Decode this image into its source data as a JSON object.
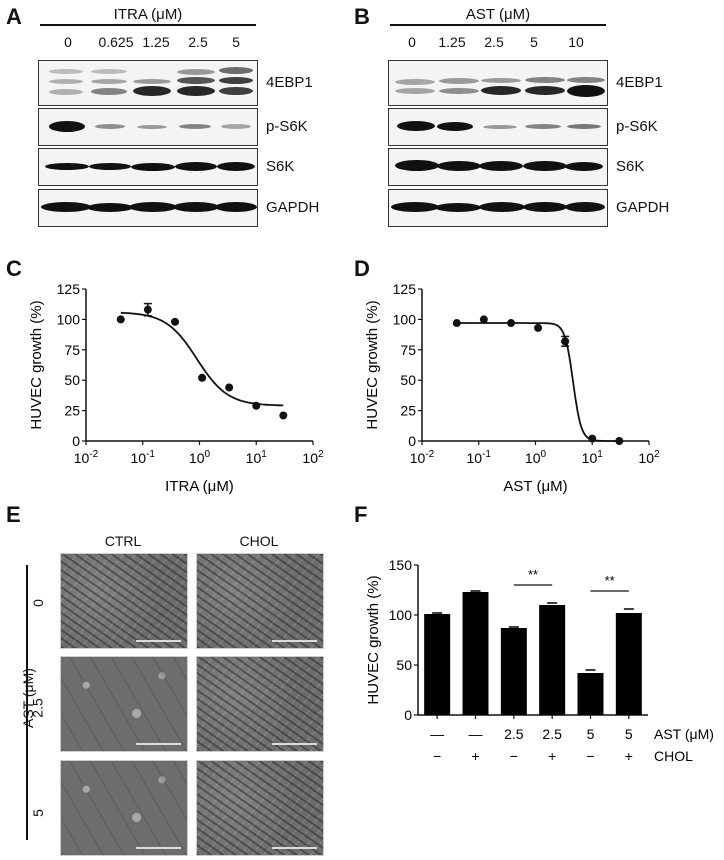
{
  "panels": {
    "A": {
      "letter": "A",
      "title": "ITRA (μM)",
      "lanes": [
        "0",
        "0.625",
        "1.25",
        "2.5",
        "5"
      ],
      "proteins": [
        "4EBP1",
        "p-S6K",
        "S6K",
        "GAPDH"
      ]
    },
    "B": {
      "letter": "B",
      "title": "AST (μM)",
      "lanes": [
        "0",
        "1.25",
        "2.5",
        "5",
        "10"
      ],
      "proteins": [
        "4EBP1",
        "p-S6K",
        "S6K",
        "GAPDH"
      ]
    },
    "C": {
      "letter": "C"
    },
    "D": {
      "letter": "D"
    },
    "E": {
      "letter": "E",
      "columns": [
        "CTRL",
        "CHOL"
      ],
      "row_axis_label": "AST (μM)",
      "rows": [
        "0",
        "2.5",
        "5"
      ]
    },
    "F": {
      "letter": "F"
    }
  },
  "chart_data": [
    {
      "id": "C",
      "type": "scatter",
      "title": "",
      "xlabel": "ITRA (μM)",
      "ylabel": "HUVEC growth (%)",
      "xscale": "log",
      "xlim": [
        0.01,
        100
      ],
      "ylim": [
        0,
        125
      ],
      "xticks": [
        "10-2",
        "10-1",
        "100",
        "101",
        "102"
      ],
      "yticks": [
        0,
        25,
        50,
        75,
        100,
        125
      ],
      "x": [
        0.041,
        0.123,
        0.37,
        1.11,
        3.33,
        10,
        30
      ],
      "y": [
        100,
        108,
        98,
        52,
        44,
        29,
        21
      ],
      "error": [
        0,
        5,
        0,
        0,
        0,
        0,
        0
      ],
      "fit": "sigmoid",
      "fit_params": {
        "top": 106,
        "bottom": 29,
        "ic50": 0.9
      }
    },
    {
      "id": "D",
      "type": "scatter",
      "title": "",
      "xlabel": "AST (μM)",
      "ylabel": "HUVEC growth (%)",
      "xscale": "log",
      "xlim": [
        0.01,
        100
      ],
      "ylim": [
        0,
        125
      ],
      "xticks": [
        "10-2",
        "10-1",
        "100",
        "101",
        "102"
      ],
      "yticks": [
        0,
        25,
        50,
        75,
        100,
        125
      ],
      "x": [
        0.041,
        0.123,
        0.37,
        1.11,
        3.33,
        10,
        30
      ],
      "y": [
        97,
        100,
        97,
        93,
        82,
        2,
        0
      ],
      "error": [
        0,
        0,
        0,
        0,
        4,
        0,
        0
      ],
      "fit": "sigmoid",
      "fit_params": {
        "top": 97,
        "bottom": 0,
        "ic50": 4.6
      }
    },
    {
      "id": "F",
      "type": "bar",
      "title": "",
      "xlabel": "",
      "ylabel": "HUVEC growth (%)",
      "ylim": [
        0,
        150
      ],
      "yticks": [
        0,
        50,
        100,
        150
      ],
      "categories": [
        "1",
        "2",
        "3",
        "4",
        "5",
        "6"
      ],
      "values": [
        101,
        123,
        87,
        110,
        42,
        102
      ],
      "error": [
        1,
        1,
        1,
        2,
        3,
        4
      ],
      "row_labels": [
        {
          "name": "AST (μM)",
          "values": [
            "—",
            "—",
            "2.5",
            "2.5",
            "5",
            "5"
          ]
        },
        {
          "name": "CHOL",
          "values": [
            "−",
            "+",
            "−",
            "+",
            "−",
            "+"
          ]
        }
      ],
      "annotations": [
        {
          "text": "**",
          "between": [
            3,
            4
          ]
        },
        {
          "text": "**",
          "between": [
            5,
            6
          ]
        }
      ]
    }
  ]
}
